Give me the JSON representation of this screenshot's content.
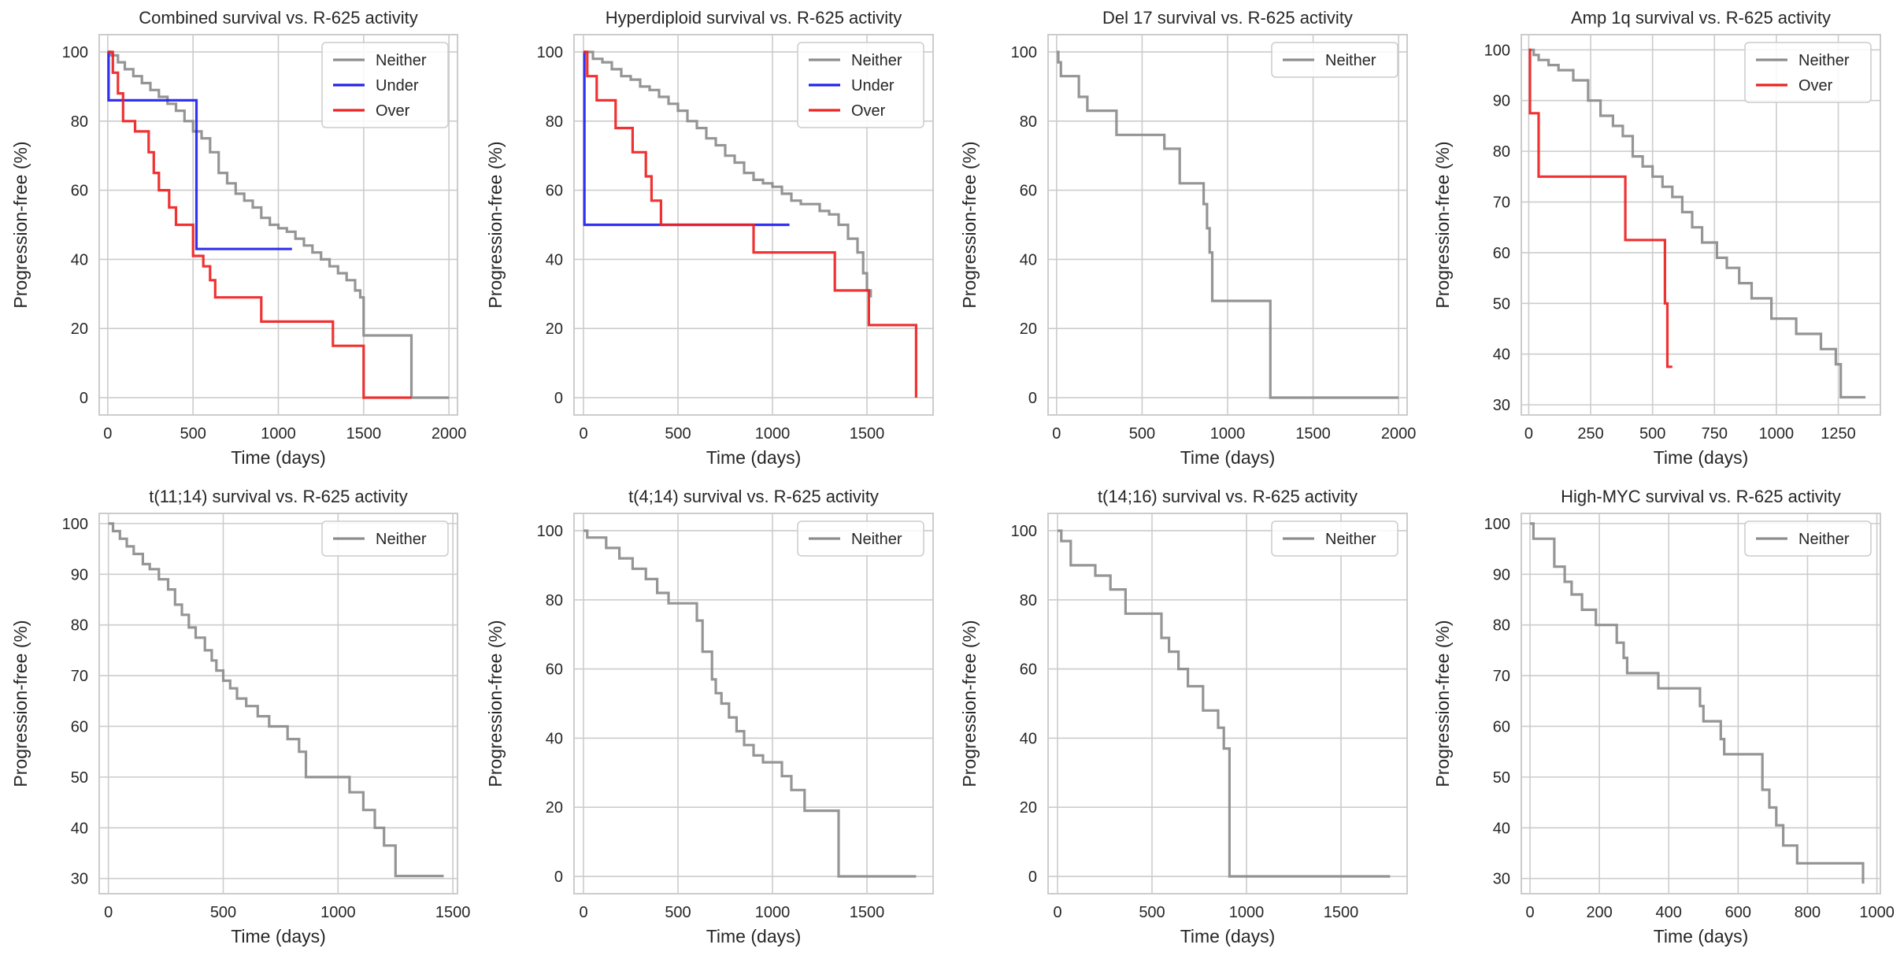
{
  "figure": {
    "background": "#ffffff",
    "grid_color": "#cccccc",
    "frame_color": "#cccccc"
  },
  "chart_data": [
    {
      "type": "line",
      "step": "post",
      "title": "Combined survival vs. R-625 activity",
      "xlabel": "Time (days)",
      "ylabel": "Progression-free (%)",
      "xlim": [
        -50,
        2050
      ],
      "ylim": [
        -5,
        105
      ],
      "xticks": [
        0,
        500,
        1000,
        1500,
        2000
      ],
      "yticks": [
        0,
        20,
        40,
        60,
        80,
        100
      ],
      "legend": "top-right",
      "grid": true,
      "series": [
        {
          "name": "Neither",
          "color": "#8c8c8c",
          "x": [
            0,
            20,
            60,
            100,
            150,
            200,
            250,
            300,
            350,
            400,
            450,
            500,
            550,
            600,
            650,
            700,
            750,
            800,
            850,
            900,
            950,
            1000,
            1050,
            1100,
            1150,
            1200,
            1250,
            1300,
            1350,
            1400,
            1450,
            1480,
            1500,
            1780,
            2000
          ],
          "y": [
            100,
            99,
            97,
            95,
            93,
            91,
            89,
            87,
            85,
            83,
            80,
            77,
            75,
            71,
            65,
            62,
            59,
            57,
            55,
            52,
            50,
            49,
            48,
            46,
            44,
            42,
            40,
            38,
            36,
            34,
            31,
            29,
            18,
            0,
            0
          ]
        },
        {
          "name": "Under",
          "color": "#2222ee",
          "x": [
            0,
            5,
            520,
            1080
          ],
          "y": [
            100,
            86,
            43,
            43
          ]
        },
        {
          "name": "Over",
          "color": "#ee2222",
          "x": [
            0,
            30,
            60,
            90,
            160,
            240,
            270,
            300,
            360,
            400,
            500,
            560,
            600,
            630,
            900,
            1320,
            1500,
            1780
          ],
          "y": [
            100,
            94,
            88,
            80,
            77,
            71,
            65,
            60,
            55,
            50,
            41,
            38,
            34,
            29,
            22,
            15,
            0,
            0
          ]
        }
      ]
    },
    {
      "type": "line",
      "step": "post",
      "title": "Hyperdiploid survival vs. R-625 activity",
      "xlabel": "Time (days)",
      "ylabel": "Progression-free (%)",
      "xlim": [
        -50,
        1850
      ],
      "ylim": [
        -5,
        105
      ],
      "xticks": [
        0,
        500,
        1000,
        1500
      ],
      "yticks": [
        0,
        20,
        40,
        60,
        80,
        100
      ],
      "legend": "top-right",
      "grid": true,
      "series": [
        {
          "name": "Neither",
          "color": "#8c8c8c",
          "x": [
            0,
            50,
            100,
            150,
            200,
            250,
            300,
            350,
            400,
            450,
            500,
            550,
            600,
            650,
            700,
            750,
            800,
            850,
            900,
            950,
            1000,
            1050,
            1100,
            1150,
            1200,
            1250,
            1300,
            1350,
            1400,
            1450,
            1480,
            1500,
            1520
          ],
          "y": [
            100,
            98,
            97,
            95,
            93,
            92,
            90,
            89,
            87,
            85,
            83,
            80,
            78,
            75,
            73,
            70,
            68,
            65,
            63,
            62,
            61,
            59,
            57,
            56,
            56,
            54,
            53,
            50,
            46,
            42,
            36,
            31,
            29
          ]
        },
        {
          "name": "Under",
          "color": "#2222ee",
          "x": [
            0,
            5,
            1090
          ],
          "y": [
            100,
            50,
            50
          ]
        },
        {
          "name": "Over",
          "color": "#ee2222",
          "x": [
            0,
            20,
            70,
            170,
            260,
            330,
            360,
            410,
            900,
            1330,
            1510,
            1760
          ],
          "y": [
            100,
            93,
            86,
            78,
            71,
            64,
            57,
            50,
            42,
            31,
            21,
            0
          ]
        }
      ]
    },
    {
      "type": "line",
      "step": "post",
      "title": "Del 17 survival vs. R-625 activity",
      "xlabel": "Time (days)",
      "ylabel": "Progression-free (%)",
      "xlim": [
        -50,
        2050
      ],
      "ylim": [
        -5,
        105
      ],
      "xticks": [
        0,
        500,
        1000,
        1500,
        2000
      ],
      "yticks": [
        0,
        20,
        40,
        60,
        80,
        100
      ],
      "legend": "top-right",
      "grid": true,
      "series": [
        {
          "name": "Neither",
          "color": "#8c8c8c",
          "x": [
            0,
            10,
            25,
            130,
            180,
            350,
            630,
            720,
            860,
            880,
            895,
            910,
            1250,
            2000
          ],
          "y": [
            100,
            97,
            93,
            87,
            83,
            76,
            72,
            62,
            56,
            49,
            42,
            28,
            0,
            0
          ]
        }
      ]
    },
    {
      "type": "line",
      "step": "post",
      "title": "Amp 1q survival vs. R-625 activity",
      "xlabel": "Time (days)",
      "ylabel": "Progression-free (%)",
      "xlim": [
        -30,
        1420
      ],
      "ylim": [
        28,
        103
      ],
      "xticks": [
        0,
        250,
        500,
        750,
        1000,
        1250
      ],
      "yticks": [
        30,
        40,
        50,
        60,
        70,
        80,
        90,
        100
      ],
      "legend": "top-right",
      "grid": true,
      "series": [
        {
          "name": "Neither",
          "color": "#8c8c8c",
          "x": [
            0,
            20,
            40,
            80,
            120,
            180,
            240,
            290,
            340,
            380,
            420,
            460,
            500,
            540,
            580,
            620,
            660,
            700,
            760,
            800,
            850,
            900,
            980,
            1080,
            1180,
            1240,
            1260,
            1360
          ],
          "y": [
            100,
            99,
            98,
            97,
            96,
            94,
            90,
            87,
            85,
            83,
            79,
            77,
            75,
            73,
            71,
            68,
            65,
            62,
            59,
            57,
            54,
            51,
            47,
            44,
            41,
            38,
            31.5,
            31.5
          ]
        },
        {
          "name": "Over",
          "color": "#ee2222",
          "x": [
            0,
            5,
            40,
            390,
            550,
            560,
            580
          ],
          "y": [
            100,
            87.5,
            75,
            62.5,
            50,
            37.5,
            37.5
          ]
        }
      ]
    },
    {
      "type": "line",
      "step": "post",
      "title": "t(11;14) survival vs. R-625 activity",
      "xlabel": "Time (days)",
      "ylabel": "Progression-free (%)",
      "xlim": [
        -40,
        1520
      ],
      "ylim": [
        27,
        102
      ],
      "xticks": [
        0,
        500,
        1000,
        1500
      ],
      "yticks": [
        30,
        40,
        50,
        60,
        70,
        80,
        90,
        100
      ],
      "legend": "top-right",
      "grid": true,
      "series": [
        {
          "name": "Neither",
          "color": "#8c8c8c",
          "x": [
            0,
            20,
            50,
            80,
            110,
            150,
            180,
            220,
            260,
            290,
            320,
            350,
            380,
            420,
            450,
            470,
            500,
            530,
            560,
            600,
            650,
            700,
            780,
            830,
            860,
            1050,
            1110,
            1160,
            1200,
            1250,
            1460
          ],
          "y": [
            100,
            98.5,
            97,
            95.5,
            94,
            92,
            91,
            89,
            87,
            84,
            82,
            79.5,
            77.5,
            75,
            73,
            71,
            69,
            67.5,
            65.5,
            64,
            62,
            60,
            57.5,
            55,
            50,
            47,
            43.5,
            40,
            36.5,
            30.5,
            30.5
          ]
        }
      ]
    },
    {
      "type": "line",
      "step": "post",
      "title": "t(4;14) survival vs. R-625 activity",
      "xlabel": "Time (days)",
      "ylabel": "Progression-free (%)",
      "xlim": [
        -50,
        1850
      ],
      "ylim": [
        -5,
        105
      ],
      "xticks": [
        0,
        500,
        1000,
        1500
      ],
      "yticks": [
        0,
        20,
        40,
        60,
        80,
        100
      ],
      "legend": "top-right",
      "grid": true,
      "series": [
        {
          "name": "Neither",
          "color": "#8c8c8c",
          "x": [
            0,
            20,
            120,
            190,
            260,
            330,
            390,
            450,
            600,
            630,
            680,
            700,
            730,
            770,
            810,
            850,
            900,
            950,
            1050,
            1100,
            1170,
            1350,
            1760
          ],
          "y": [
            100,
            98,
            95,
            92,
            89,
            86,
            82,
            79,
            74,
            65,
            57,
            53,
            50,
            46,
            42,
            38,
            35,
            33,
            29,
            25,
            19,
            0,
            0
          ]
        }
      ]
    },
    {
      "type": "line",
      "step": "post",
      "title": "t(14;16) survival vs. R-625 activity",
      "xlabel": "Time (days)",
      "ylabel": "Progression-free (%)",
      "xlim": [
        -50,
        1850
      ],
      "ylim": [
        -5,
        105
      ],
      "xticks": [
        0,
        500,
        1000,
        1500
      ],
      "yticks": [
        0,
        20,
        40,
        60,
        80,
        100
      ],
      "legend": "top-right",
      "grid": true,
      "series": [
        {
          "name": "Neither",
          "color": "#8c8c8c",
          "x": [
            0,
            20,
            70,
            200,
            280,
            360,
            550,
            590,
            640,
            690,
            770,
            850,
            880,
            910,
            1760
          ],
          "y": [
            100,
            97,
            90,
            87,
            83,
            76,
            69,
            65,
            60,
            55,
            48,
            43,
            37,
            0,
            0
          ]
        }
      ]
    },
    {
      "type": "line",
      "step": "post",
      "title": "High-MYC survival vs. R-625 activity",
      "xlabel": "Time (days)",
      "ylabel": "Progression-free (%)",
      "xlim": [
        -25,
        1010
      ],
      "ylim": [
        27,
        102
      ],
      "xticks": [
        0,
        200,
        400,
        600,
        800,
        1000
      ],
      "yticks": [
        30,
        40,
        50,
        60,
        70,
        80,
        90,
        100
      ],
      "legend": "top-right",
      "grid": true,
      "series": [
        {
          "name": "Neither",
          "color": "#8c8c8c",
          "x": [
            0,
            10,
            70,
            100,
            120,
            150,
            190,
            250,
            270,
            280,
            370,
            490,
            500,
            550,
            560,
            670,
            690,
            710,
            730,
            770,
            960
          ],
          "y": [
            100,
            97,
            91.5,
            88.5,
            86,
            83,
            80,
            76.5,
            73.5,
            70.5,
            67.5,
            64,
            61,
            57.5,
            54.5,
            47.5,
            44,
            40.5,
            36.5,
            33,
            29
          ]
        }
      ]
    }
  ]
}
